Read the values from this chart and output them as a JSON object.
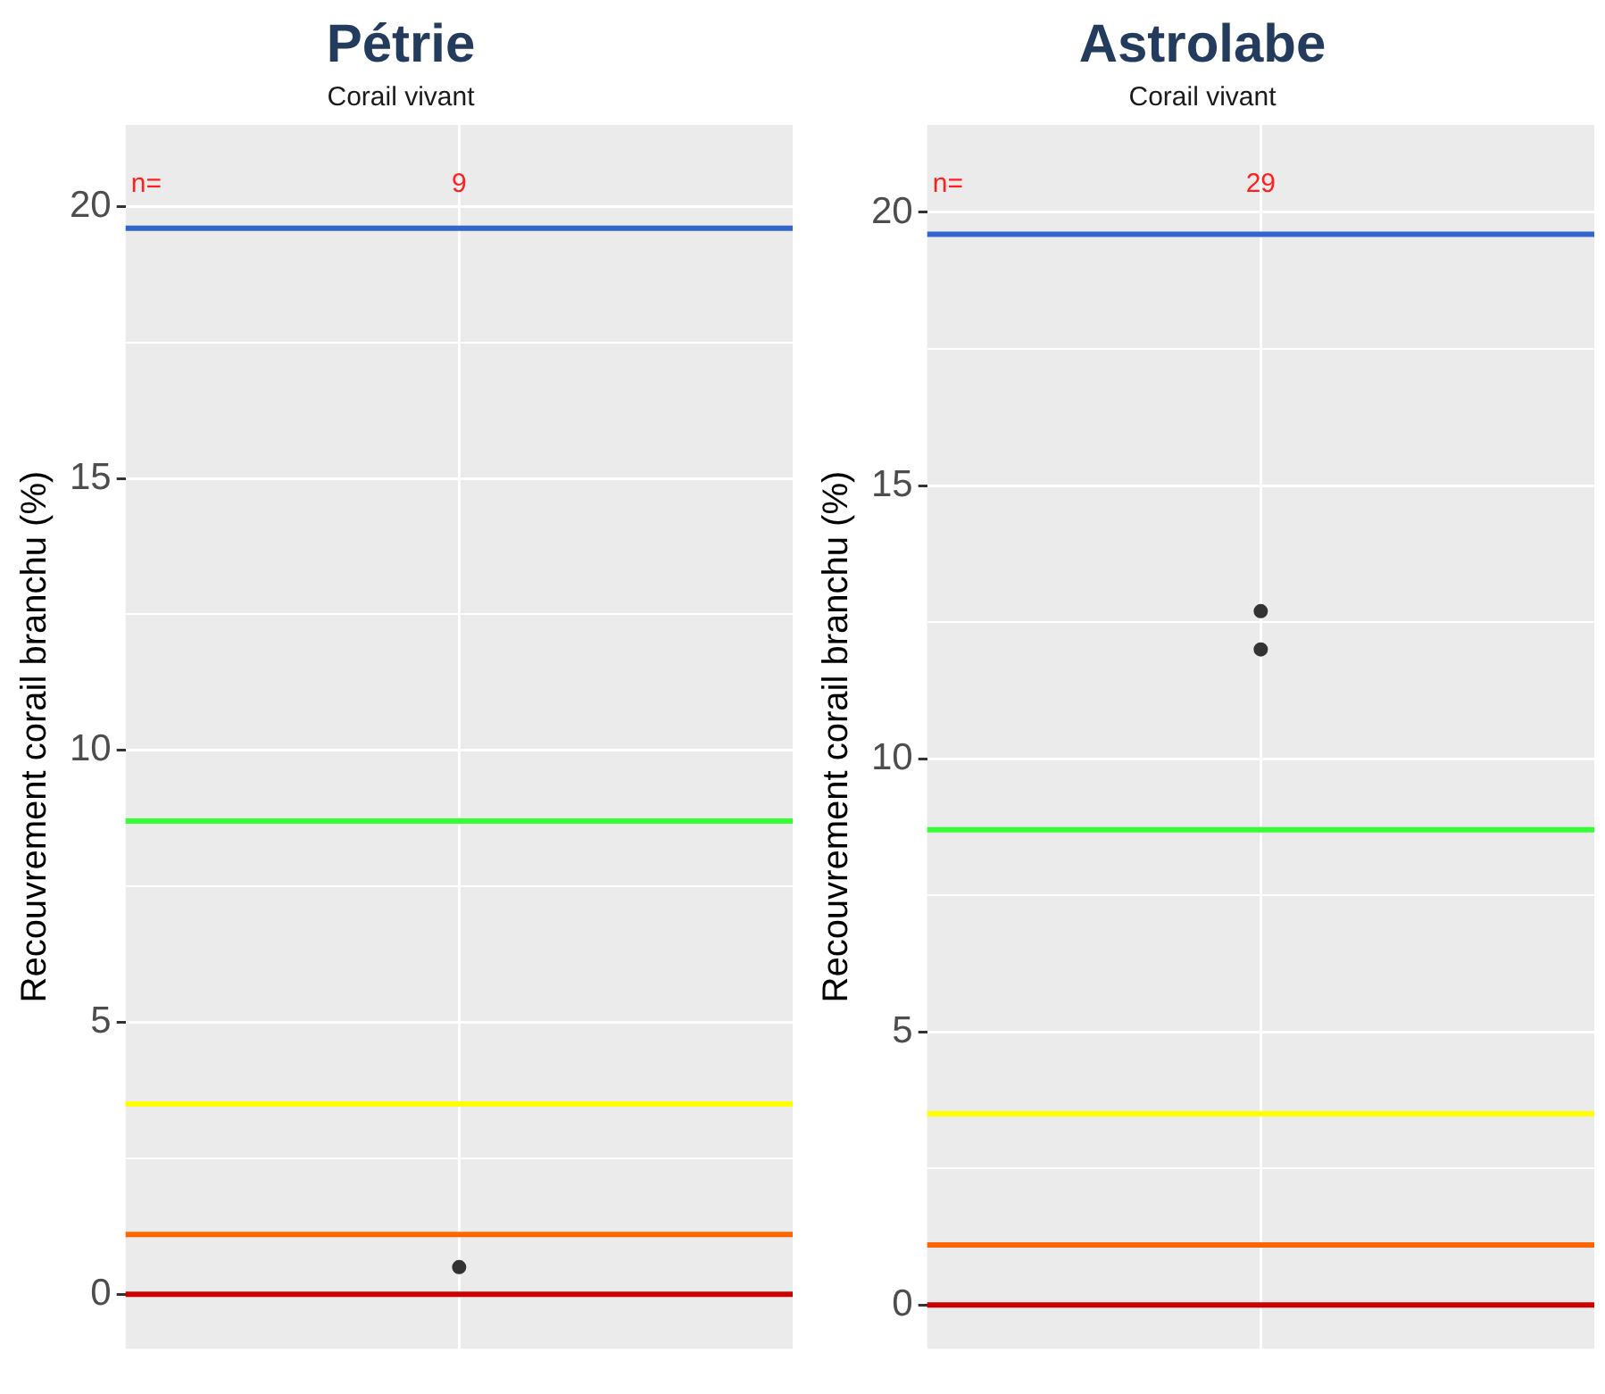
{
  "chart_data": [
    {
      "type": "scatter",
      "title": "Pétrie",
      "subtitle": "Corail vivant",
      "ylabel": "Recouvrement corail branchu (%)",
      "categories": [
        null
      ],
      "series": [
        {
          "color": "#333333",
          "values": [
            0.5
          ]
        }
      ],
      "ylim": [
        -1,
        21.5
      ],
      "yticks": [
        0,
        {
          "value": 2.5,
          "label": null
        },
        5,
        {
          "value": 7.5,
          "label": null
        },
        10,
        {
          "value": 12.5,
          "label": null
        },
        15,
        {
          "value": 17.5,
          "label": null
        },
        20
      ],
      "ref_lines": [
        {
          "axis": "y",
          "value": 0,
          "color": "#cc0000"
        },
        {
          "axis": "y",
          "value": 1.1,
          "color": "#ff6600"
        },
        {
          "axis": "y",
          "value": 3.5,
          "color": "#ffff00"
        },
        {
          "axis": "y",
          "value": 8.7,
          "color": "#33ff33"
        },
        {
          "axis": "y",
          "value": 19.6,
          "color": "#3366cc"
        }
      ],
      "annotations": [
        "n=",
        "9"
      ],
      "grid": true,
      "legend": false,
      "marker": "circle"
    },
    {
      "type": "scatter",
      "title": "Astrolabe",
      "subtitle": "Corail vivant",
      "ylabel": "Recouvrement corail branchu (%)",
      "categories": [
        null
      ],
      "series": [
        {
          "color": "#333333",
          "values": [
            12.7
          ]
        },
        {
          "color": "#333333",
          "values": [
            12.0
          ]
        }
      ],
      "ylim": [
        -0.8,
        21.6
      ],
      "yticks": [
        0,
        {
          "value": 2.5,
          "label": null
        },
        5,
        {
          "value": 7.5,
          "label": null
        },
        10,
        {
          "value": 12.5,
          "label": null
        },
        15,
        {
          "value": 17.5,
          "label": null
        },
        20
      ],
      "ref_lines": [
        {
          "axis": "y",
          "value": 0,
          "color": "#cc0000"
        },
        {
          "axis": "y",
          "value": 1.1,
          "color": "#ff6600"
        },
        {
          "axis": "y",
          "value": 3.5,
          "color": "#ffff00"
        },
        {
          "axis": "y",
          "value": 8.7,
          "color": "#33ff33"
        },
        {
          "axis": "y",
          "value": 19.6,
          "color": "#3366cc"
        }
      ],
      "annotations": [
        "n=",
        "29"
      ],
      "grid": true,
      "legend": false,
      "marker": "circle"
    }
  ]
}
